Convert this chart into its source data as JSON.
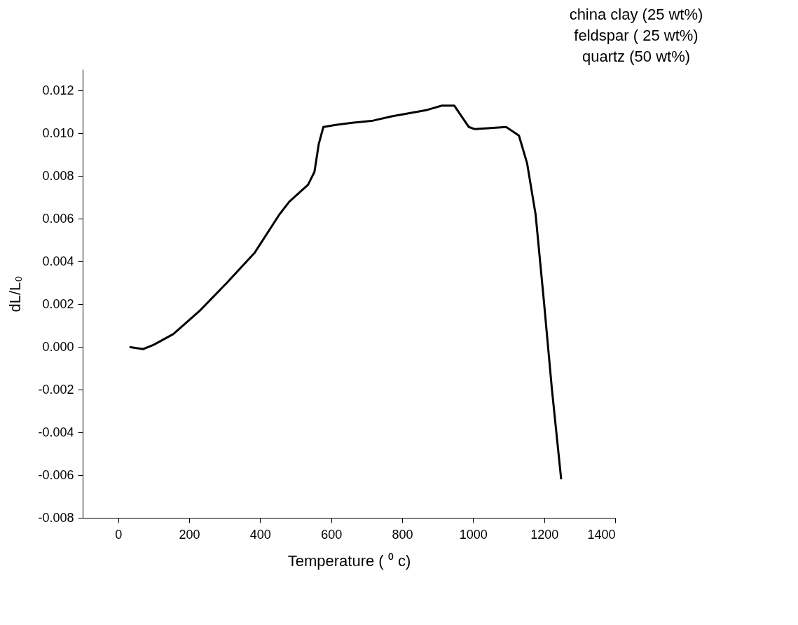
{
  "chart_data": {
    "type": "line",
    "xlabel": "Temperature ( ⁰ c)",
    "ylabel": "dL/L₀",
    "annotations": [
      "china clay (25 wt%)",
      "feldspar ( 25 wt%)",
      "quartz  (50 wt%)"
    ],
    "x": [
      32,
      70,
      100,
      155,
      230,
      306,
      384,
      454,
      482,
      535,
      553,
      565,
      578,
      613,
      659,
      718,
      771,
      870,
      912,
      947,
      988,
      1005,
      1093,
      1129,
      1152,
      1176,
      1199,
      1222,
      1248
    ],
    "series": [
      {
        "color": "#000000",
        "values": [
          0.0,
          -0.0001,
          0.0001,
          0.0006,
          0.0017,
          0.003,
          0.0044,
          0.0062,
          0.0068,
          0.0076,
          0.0082,
          0.0095,
          0.0103,
          0.0104,
          0.0105,
          0.0106,
          0.0108,
          0.0111,
          0.0113,
          0.0113,
          0.0103,
          0.0102,
          0.0103,
          0.0099,
          0.0086,
          0.0062,
          0.0022,
          -0.002,
          -0.0062
        ]
      }
    ],
    "xlim": [
      -100,
      1400
    ],
    "ylim": [
      -0.008,
      0.013
    ],
    "xticks": [
      0,
      200,
      400,
      600,
      800,
      1000,
      1200,
      1400
    ],
    "yticks": [
      {
        "value": -0.008,
        "label": "-0.008"
      },
      {
        "value": -0.006,
        "label": "-0.006"
      },
      {
        "value": -0.004,
        "label": "-0.004"
      },
      {
        "value": -0.002,
        "label": "-0.002"
      },
      {
        "value": 0,
        "label": "0.000"
      },
      {
        "value": 0.002,
        "label": "0.002"
      },
      {
        "value": 0.004,
        "label": "0.004"
      },
      {
        "value": 0.006,
        "label": "0.006"
      },
      {
        "value": 0.008,
        "label": "0.008"
      },
      {
        "value": 0.01,
        "label": "0.010"
      },
      {
        "value": 0.012,
        "label": "0.012"
      }
    ],
    "grid": false,
    "marker": "none",
    "line_style": "solid"
  }
}
